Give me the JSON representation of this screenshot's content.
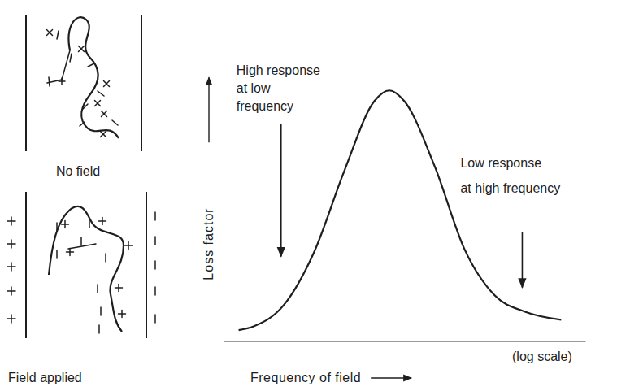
{
  "chart_data": {
    "type": "line",
    "x_label": "Frequency of field",
    "y_label": "Loss factor",
    "x_scale_label": "(log scale)",
    "log": "x",
    "tick_labels": false,
    "color": "#1e1e1e",
    "xlim": [
      1,
      1000000
    ],
    "ylim": [
      0,
      1
    ],
    "x": [
      1.78,
      3.16,
      10,
      31.6,
      100,
      316,
      562,
      1000,
      3162,
      10000,
      31623,
      100000,
      398107
    ],
    "values": [
      0.042,
      0.056,
      0.135,
      0.33,
      0.63,
      0.89,
      0.93,
      0.89,
      0.65,
      0.34,
      0.17,
      0.11,
      0.08
    ],
    "annotations": [
      {
        "text": [
          "High response",
          "at low",
          "frequency"
        ],
        "x": 9
      },
      {
        "text": [
          "Low response",
          "at high frequency"
        ],
        "x": 90000
      }
    ]
  },
  "diagram": {
    "panels": [
      {
        "label": "No field"
      },
      {
        "label": "Field applied"
      }
    ]
  }
}
